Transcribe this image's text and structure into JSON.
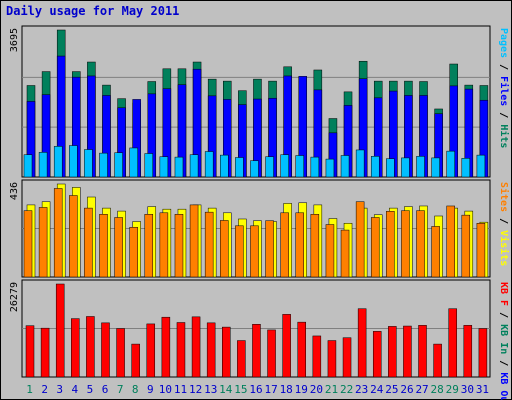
{
  "title": "Daily usage for May 2011",
  "colors": {
    "hits": "#00805c",
    "files": "#0000ff",
    "pages": "#00c0ff",
    "visits": "#ffff00",
    "sites": "#ff8000",
    "kb_f": "#ff0000",
    "kb_in": "#00805c",
    "kb_out": "#0000ff",
    "background": "#c0c0c0",
    "weekend_label": "#00805c",
    "weekday_label": "#0000cc"
  },
  "chart_data": [
    {
      "type": "bar",
      "panel": "top",
      "y_max_label": "3695",
      "ylim": [
        0,
        3695
      ],
      "legend_parts": [
        {
          "text": "Pages",
          "color": "#00c0ff"
        },
        {
          "text": " / ",
          "color": "#000000"
        },
        {
          "text": "Files",
          "color": "#0000ff"
        },
        {
          "text": " / ",
          "color": "#000000"
        },
        {
          "text": "Hits",
          "color": "#00805c"
        }
      ],
      "series": [
        {
          "name": "Hits",
          "values": [
            2300,
            2650,
            3695,
            2650,
            2890,
            2310,
            1970,
            1860,
            2400,
            2720,
            2720,
            2890,
            2460,
            2410,
            2170,
            2460,
            2410,
            2770,
            2410,
            2690,
            1470,
            2140,
            2910,
            2410,
            2410,
            2410,
            2400,
            1710,
            2840,
            2310,
            2300
          ]
        },
        {
          "name": "Files",
          "values": [
            1900,
            2070,
            3040,
            2510,
            2540,
            2050,
            1740,
            1950,
            2090,
            2220,
            2320,
            2710,
            2040,
            1950,
            1820,
            1960,
            1980,
            2540,
            2530,
            2190,
            1110,
            1800,
            2470,
            1990,
            2160,
            2050,
            2050,
            1590,
            2290,
            2210,
            1930
          ]
        },
        {
          "name": "Pages",
          "values": [
            560,
            620,
            770,
            790,
            690,
            600,
            610,
            730,
            590,
            510,
            500,
            560,
            640,
            550,
            490,
            410,
            510,
            560,
            540,
            500,
            450,
            540,
            680,
            520,
            460,
            480,
            520,
            480,
            650,
            470,
            550
          ]
        }
      ]
    },
    {
      "type": "bar",
      "panel": "middle",
      "y_max_label": "436",
      "ylim": [
        0,
        436
      ],
      "legend_parts": [
        {
          "text": "Sites",
          "color": "#ff8000"
        },
        {
          "text": " / ",
          "color": "#000000"
        },
        {
          "text": "Visits",
          "color": "#ffff00"
        }
      ],
      "series": [
        {
          "name": "Visits",
          "values": [
            338,
            353,
            436,
            420,
            375,
            323,
            309,
            260,
            330,
            318,
            318,
            338,
            323,
            301,
            272,
            264,
            260,
            345,
            348,
            338,
            274,
            252,
            323,
            292,
            323,
            330,
            333,
            286,
            323,
            309,
            257
          ]
        },
        {
          "name": "Sites",
          "values": [
            311,
            326,
            415,
            382,
            323,
            294,
            279,
            233,
            294,
            301,
            294,
            338,
            304,
            265,
            240,
            240,
            264,
            301,
            301,
            294,
            246,
            220,
            353,
            279,
            308,
            311,
            311,
            237,
            333,
            290,
            252
          ]
        }
      ]
    },
    {
      "type": "bar",
      "panel": "bottom",
      "y_max_label": "26279",
      "ylim": [
        0,
        26279
      ],
      "legend_parts": [
        {
          "text": "KB F",
          "color": "#ff0000"
        },
        {
          "text": " / ",
          "color": "#000000"
        },
        {
          "text": "KB In",
          "color": "#00805c"
        },
        {
          "text": " / ",
          "color": "#000000"
        },
        {
          "text": "KB Out",
          "color": "#0000ff"
        }
      ],
      "series": [
        {
          "name": "KB F",
          "values": [
            14500,
            13800,
            26279,
            16500,
            17100,
            15300,
            13700,
            9300,
            15000,
            16900,
            15400,
            17000,
            15300,
            14100,
            10300,
            14900,
            13300,
            17700,
            15500,
            11600,
            10300,
            11100,
            19300,
            12900,
            14300,
            14400,
            14600,
            9300,
            19300,
            14600,
            13700
          ]
        }
      ],
      "x_labels": [
        "1",
        "2",
        "3",
        "4",
        "5",
        "6",
        "7",
        "8",
        "9",
        "10",
        "11",
        "12",
        "13",
        "14",
        "15",
        "16",
        "17",
        "18",
        "19",
        "20",
        "21",
        "22",
        "23",
        "24",
        "25",
        "26",
        "27",
        "28",
        "29",
        "30",
        "31"
      ],
      "weekend_days": [
        1,
        7,
        8,
        14,
        15,
        21,
        22,
        28,
        29
      ]
    }
  ]
}
